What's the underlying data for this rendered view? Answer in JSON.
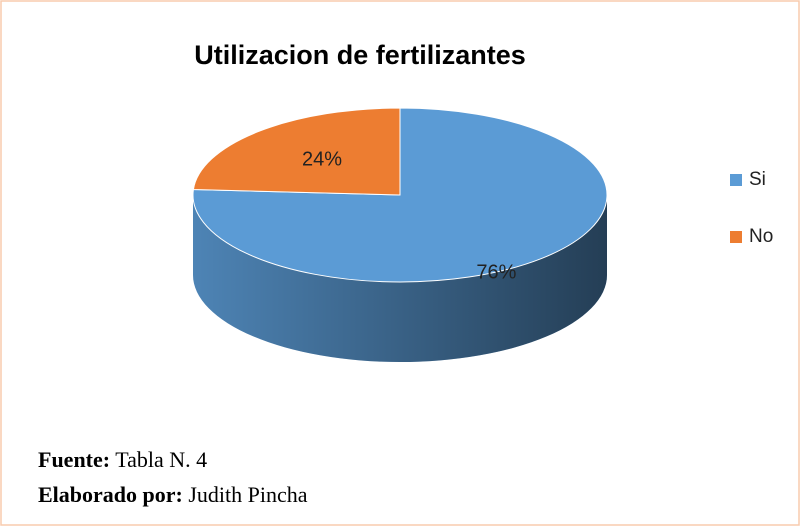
{
  "chart_data": {
    "type": "pie",
    "title": "Utilizacion de fertilizantes",
    "categories": [
      "Si",
      "No"
    ],
    "values": [
      76,
      24
    ],
    "value_labels": [
      "76%",
      "24%"
    ],
    "colors": [
      "#5b9bd5",
      "#ed7d31"
    ],
    "legend": "right"
  },
  "caption": {
    "source_label": "Fuente:",
    "source": "Tabla N. 4",
    "author_label": "Elaborado por:",
    "author": "Judith Pincha"
  }
}
